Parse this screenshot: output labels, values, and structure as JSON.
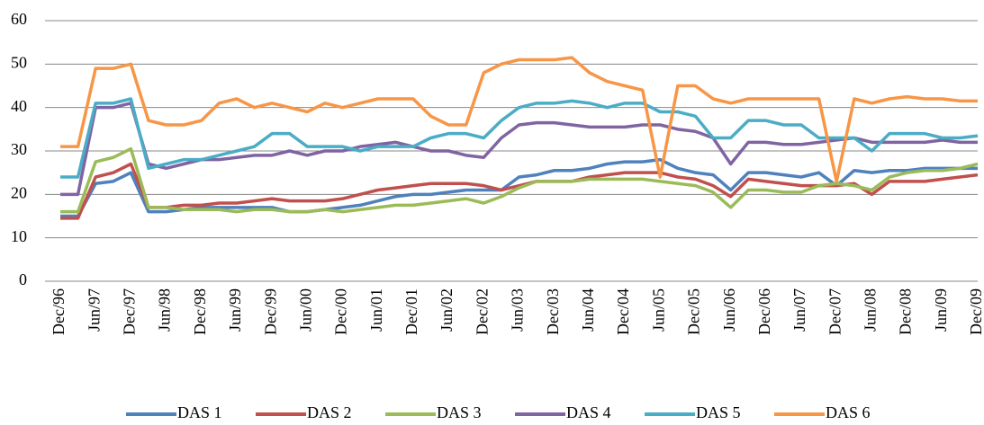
{
  "chart_data": {
    "type": "line",
    "categories": [
      "Dec/96",
      null,
      "Jun/97",
      null,
      "Dec/97",
      null,
      "Jun/98",
      null,
      "Dec/98",
      null,
      "Jun/99",
      null,
      "Dec/99",
      null,
      "Jun/00",
      null,
      "Dec/00",
      null,
      "Jun/01",
      null,
      "Dec/01",
      null,
      "Jun/02",
      null,
      "Dec/02",
      null,
      "Jun/03",
      null,
      "Dec/03",
      null,
      "Jun/04",
      null,
      "Dec/04",
      null,
      "Jun/05",
      null,
      "Dec/05",
      null,
      "Jun/06",
      null,
      "Dec/06",
      null,
      "Jun/07",
      null,
      "Dec/07",
      null,
      "Jun/08",
      null,
      "Dec/08",
      null,
      "Jun/09",
      null,
      "Dec/09"
    ],
    "series": [
      {
        "name": "DAS 1",
        "color": "#4f81bd",
        "values": [
          15,
          15,
          22.5,
          23,
          25,
          16,
          16,
          16.5,
          17,
          17,
          17,
          17,
          17,
          16,
          16,
          16.5,
          17,
          17.5,
          18.5,
          19.5,
          20,
          20,
          20.5,
          21,
          21,
          21,
          24,
          24.5,
          25.5,
          25.5,
          26,
          27,
          27.5,
          27.5,
          28,
          26,
          25,
          24.5,
          21,
          25,
          25,
          24.5,
          24,
          25,
          22,
          25.5,
          25,
          25.5,
          25.5,
          26,
          26,
          26,
          26
        ]
      },
      {
        "name": "DAS 2",
        "color": "#c0504d",
        "values": [
          14.5,
          14.5,
          24,
          25,
          27,
          17,
          17,
          17.5,
          17.5,
          18,
          18,
          18.5,
          19,
          18.5,
          18.5,
          18.5,
          19,
          20,
          21,
          21.5,
          22,
          22.5,
          22.5,
          22.5,
          22,
          21,
          22,
          23,
          23,
          23,
          24,
          24.5,
          25,
          25,
          25,
          24,
          23.5,
          22,
          19.5,
          23.5,
          23,
          22.5,
          22,
          22,
          22,
          22.5,
          20,
          23,
          23,
          23,
          23.5,
          24,
          24.5
        ]
      },
      {
        "name": "DAS 3",
        "color": "#9bbb59",
        "values": [
          16,
          16,
          27.5,
          28.5,
          30.5,
          17,
          17,
          16.5,
          16.5,
          16.5,
          16,
          16.5,
          16.5,
          16,
          16,
          16.5,
          16,
          16.5,
          17,
          17.5,
          17.5,
          18,
          18.5,
          19,
          18,
          19.5,
          21.5,
          23,
          23,
          23,
          23.5,
          23.5,
          23.5,
          23.5,
          23,
          22.5,
          22,
          20.5,
          17,
          21,
          21,
          20.5,
          20.5,
          22,
          22.5,
          22,
          21,
          24,
          25,
          25.5,
          25.5,
          26,
          27
        ]
      },
      {
        "name": "DAS 4",
        "color": "#8064a2",
        "values": [
          20,
          20,
          40,
          40,
          41,
          27,
          26,
          27,
          28,
          28,
          28.5,
          29,
          29,
          30,
          29,
          30,
          30,
          31,
          31.5,
          32,
          31,
          30,
          30,
          29,
          28.5,
          33,
          36,
          36.5,
          36.5,
          36,
          35.5,
          35.5,
          35.5,
          36,
          36,
          35,
          34.5,
          33,
          27,
          32,
          32,
          31.5,
          31.5,
          32,
          32.5,
          33,
          32,
          32,
          32,
          32,
          32.5,
          32,
          32
        ]
      },
      {
        "name": "DAS 5",
        "color": "#4bacc6",
        "values": [
          24,
          24,
          41,
          41,
          42,
          26,
          27,
          28,
          28,
          29,
          30,
          31,
          34,
          34,
          31,
          31,
          31,
          30,
          31,
          31,
          31,
          33,
          34,
          34,
          33,
          37,
          40,
          41,
          41,
          41.5,
          41,
          40,
          41,
          41,
          39,
          39,
          38,
          33,
          33,
          37,
          37,
          36,
          36,
          33,
          33,
          33,
          30,
          34,
          34,
          34,
          33,
          33,
          33.5
        ]
      },
      {
        "name": "DAS 6",
        "color": "#f79646",
        "values": [
          31,
          31,
          49,
          49,
          50,
          37,
          36,
          36,
          37,
          41,
          42,
          40,
          41,
          40,
          39,
          41,
          40,
          41,
          42,
          42,
          42,
          38,
          36,
          36,
          48,
          50,
          51,
          51,
          51,
          51.5,
          48,
          46,
          45,
          44,
          24,
          45,
          45,
          42,
          41,
          42,
          42,
          42,
          42,
          42,
          23,
          42,
          41,
          42,
          42.5,
          42,
          42,
          41.5,
          41.5
        ]
      }
    ],
    "ylim": [
      0,
      60
    ],
    "yticks": [
      0,
      10,
      20,
      30,
      40,
      50,
      60
    ],
    "grid": true,
    "legend": "bottom"
  }
}
